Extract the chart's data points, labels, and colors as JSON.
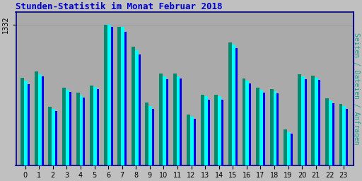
{
  "title": "Stunden-Statistik im Monat Februar 2018",
  "ylabel_right": "Seiten / Dateien / Anfragen",
  "ytick_label": "1332",
  "categories": [
    0,
    1,
    2,
    3,
    4,
    5,
    6,
    7,
    8,
    9,
    10,
    11,
    12,
    13,
    14,
    15,
    16,
    17,
    18,
    19,
    20,
    21,
    22,
    23
  ],
  "cyan_values": [
    800,
    860,
    530,
    710,
    660,
    740,
    1332,
    1310,
    1090,
    560,
    840,
    840,
    460,
    650,
    650,
    1140,
    800,
    710,
    700,
    310,
    840,
    830,
    610,
    560
  ],
  "blue_values": [
    770,
    840,
    510,
    690,
    640,
    720,
    1310,
    1260,
    1050,
    530,
    815,
    820,
    440,
    620,
    620,
    1110,
    775,
    685,
    680,
    295,
    815,
    808,
    585,
    535
  ],
  "green_values": [
    830,
    890,
    550,
    730,
    685,
    755,
    1332,
    1310,
    1120,
    590,
    865,
    865,
    480,
    665,
    665,
    1165,
    820,
    730,
    718,
    335,
    862,
    848,
    630,
    578
  ],
  "cyan_color": "#00FFFF",
  "blue_color": "#0000EE",
  "green_color": "#008B6E",
  "bg_color": "#C0C0C0",
  "plot_bg_color": "#AAAAAA",
  "title_color": "#0000CC",
  "axis_color": "#000080",
  "ylabel_right_color": "#20A090",
  "grid_color": "#999999",
  "ymax": 1450,
  "ytick_val": 1332,
  "figsize": [
    5.12,
    2.56
  ],
  "dpi": 100
}
